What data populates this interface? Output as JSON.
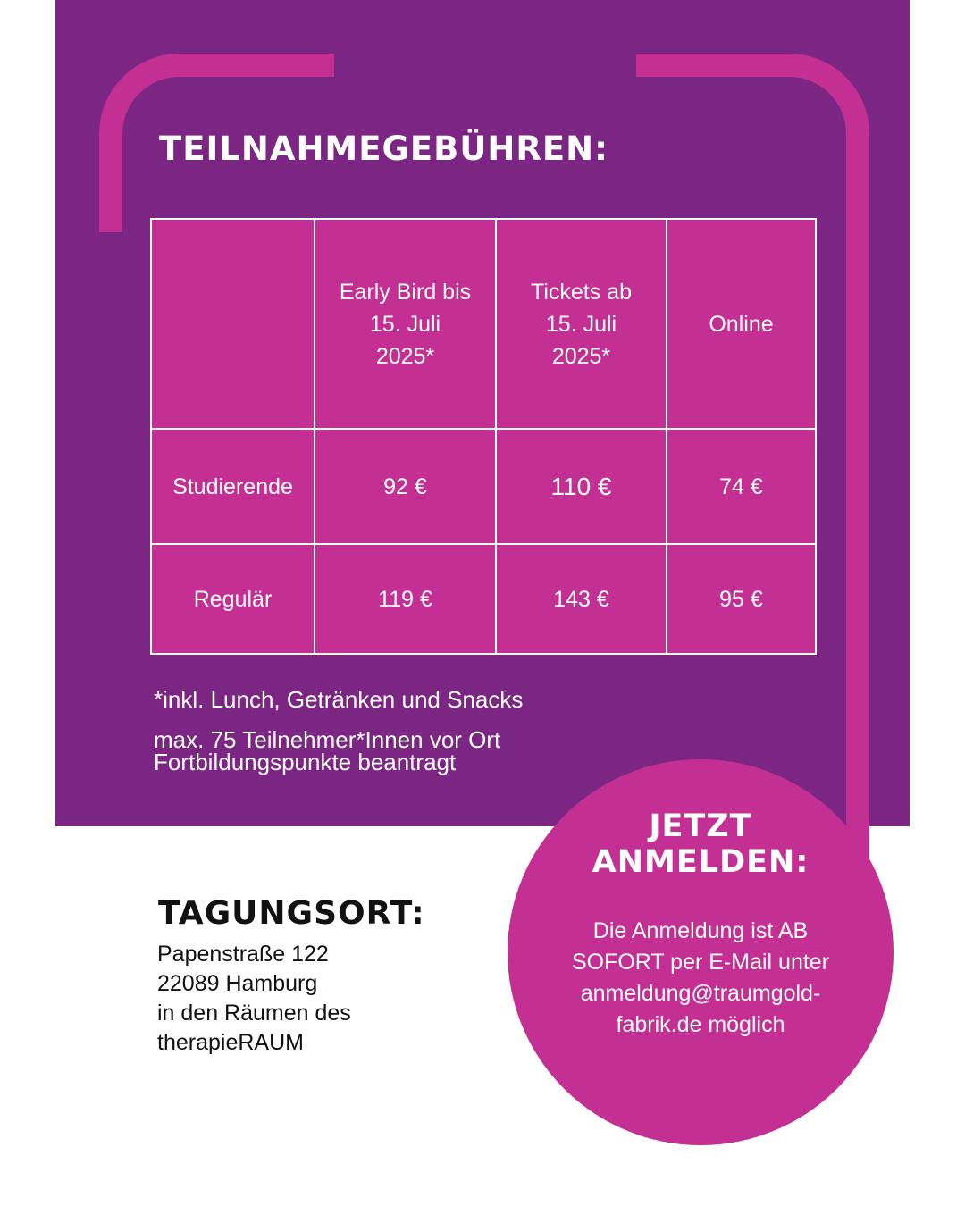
{
  "colors": {
    "purple": "#7b2682",
    "magenta": "#c42f93",
    "white": "#ffffff",
    "text_dark": "#111111"
  },
  "fees": {
    "title": "TEILNAHMEGEBÜHREN:",
    "table": {
      "header": [
        "",
        "Early Bird bis 15. Juli 2025*",
        "Tickets ab 15. Juli 2025*",
        "Online"
      ],
      "header_lines": {
        "early_bird": [
          "Early Bird bis",
          "15. Juli",
          "2025*"
        ],
        "tickets": [
          "Tickets ab",
          "15. Juli",
          "2025*"
        ],
        "online": [
          "Online"
        ]
      },
      "rows": [
        {
          "label": "Studierende",
          "early_bird": "92 €",
          "tickets": "110 €",
          "online": "74 €"
        },
        {
          "label": "Regulär",
          "early_bird": "119 €",
          "tickets": "143 €",
          "online": "95 €"
        }
      ]
    },
    "notes": [
      "*inkl. Lunch, Getränken und Snacks",
      "max. 75 Teilnehmer*Innen vor Ort",
      "Fortbildungspunkte beantragt"
    ]
  },
  "signup": {
    "title_lines": [
      "JETZT",
      "ANMELDEN:"
    ],
    "text_lines": [
      "Die Anmeldung ist AB",
      "SOFORT per E-Mail unter",
      "anmeldung@traumgold-",
      "fabrik.de möglich"
    ]
  },
  "venue": {
    "title": "TAGUNGSORT:",
    "lines": [
      "Papenstraße 122",
      "22089 Hamburg",
      "in den Räumen des",
      "therapieRAUM"
    ]
  }
}
